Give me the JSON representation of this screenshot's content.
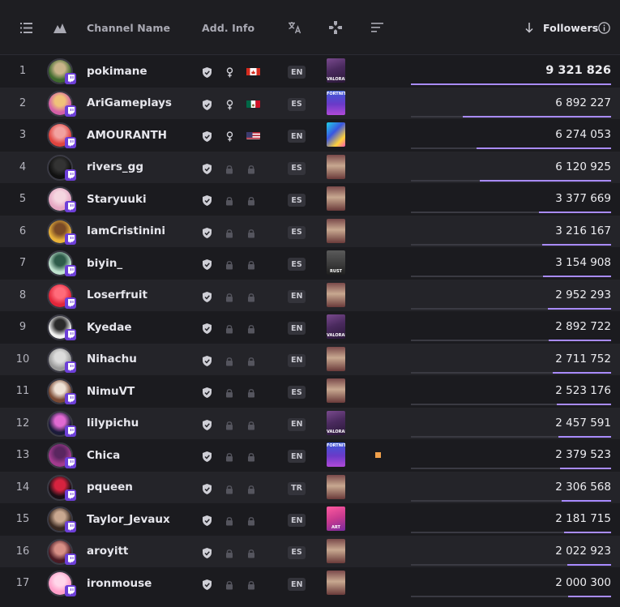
{
  "header": {
    "channel_name": "Channel Name",
    "add_info": "Add. Info",
    "followers": "Followers"
  },
  "icons": {
    "list": "list-icon",
    "platform": "platform-icon",
    "translate": "translate-icon",
    "game": "gamepad-icon",
    "sort_lines": "lines-icon",
    "sort_arrow": "arrow-down-icon",
    "info": "info-icon",
    "verified": "shield-check-icon",
    "gender": "female-icon",
    "locked": "lock-icon",
    "twitch": "twitch-icon"
  },
  "colors": {
    "accent": "#a98bff",
    "twitch": "#6d3fd8",
    "live": "#f0a04b"
  },
  "max_followers": 9321826,
  "rows": [
    {
      "rank": "1",
      "name": "pokimane",
      "gender": true,
      "flag": "CA",
      "lang": "EN",
      "game": "valorant",
      "game_text": "VALORANT",
      "followers": "9 321 826",
      "value": 9321826,
      "avatar": [
        "#3f6a2e",
        "#c9b48a"
      ]
    },
    {
      "rank": "2",
      "name": "AriGameplays",
      "gender": true,
      "flag": "MX",
      "lang": "ES",
      "game": "fortnite",
      "game_text": "FORTNITE",
      "followers": "6 892 227",
      "value": 6892227,
      "avatar": [
        "#d45fa8",
        "#f0c27a"
      ]
    },
    {
      "rank": "3",
      "name": "AMOURANTH",
      "gender": true,
      "flag": "US",
      "lang": "EN",
      "game": "fallguys",
      "game_text": "",
      "followers": "6 274 053",
      "value": 6274053,
      "avatar": [
        "#e0443f",
        "#f2a2a0"
      ]
    },
    {
      "rank": "4",
      "name": "rivers_gg",
      "gender": false,
      "flag": "",
      "lang": "ES",
      "game": "justchatting",
      "game_text": "",
      "followers": "6 120 925",
      "value": 6120925,
      "avatar": [
        "#111111",
        "#333333"
      ]
    },
    {
      "rank": "5",
      "name": "Staryuuki",
      "gender": false,
      "flag": "",
      "lang": "ES",
      "game": "justchatting",
      "game_text": "",
      "followers": "3 377 669",
      "value": 3377669,
      "avatar": [
        "#e5a7c3",
        "#f5d6e0"
      ]
    },
    {
      "rank": "6",
      "name": "IamCristinini",
      "gender": false,
      "flag": "",
      "lang": "ES",
      "game": "justchatting",
      "game_text": "",
      "followers": "3 216 167",
      "value": 3216167,
      "avatar": [
        "#e8b23a",
        "#7a4a26"
      ]
    },
    {
      "rank": "7",
      "name": "biyin_",
      "gender": false,
      "flag": "",
      "lang": "ES",
      "game": "rust",
      "game_text": "RUST",
      "followers": "3 154 908",
      "value": 3154908,
      "avatar": [
        "#bfe3cf",
        "#2e5c4a"
      ]
    },
    {
      "rank": "8",
      "name": "Loserfruit",
      "gender": false,
      "flag": "",
      "lang": "EN",
      "game": "justchatting",
      "game_text": "",
      "followers": "2 952 293",
      "value": 2952293,
      "avatar": [
        "#e2263a",
        "#ff6b7a"
      ]
    },
    {
      "rank": "9",
      "name": "Kyedae",
      "gender": false,
      "flag": "",
      "lang": "EN",
      "game": "valorant",
      "game_text": "VALORANT",
      "followers": "2 892 722",
      "value": 2892722,
      "avatar": [
        "#f2f2f2",
        "#2a2a2a"
      ]
    },
    {
      "rank": "10",
      "name": "Nihachu",
      "gender": false,
      "flag": "",
      "lang": "EN",
      "game": "justchatting",
      "game_text": "",
      "followers": "2 711 752",
      "value": 2711752,
      "avatar": [
        "#9a9a9a",
        "#dcdcdc"
      ]
    },
    {
      "rank": "11",
      "name": "NimuVT",
      "gender": false,
      "flag": "",
      "lang": "ES",
      "game": "justchatting",
      "game_text": "",
      "followers": "2 523 176",
      "value": 2523176,
      "avatar": [
        "#7a4a34",
        "#efe2d6"
      ]
    },
    {
      "rank": "12",
      "name": "lilypichu",
      "gender": false,
      "flag": "",
      "lang": "EN",
      "game": "valorant",
      "game_text": "VALORANT",
      "followers": "2 457 591",
      "value": 2457591,
      "avatar": [
        "#1b1b3a",
        "#e06ad2"
      ]
    },
    {
      "rank": "13",
      "name": "Chica",
      "gender": false,
      "flag": "",
      "lang": "EN",
      "game": "fortnite",
      "game_text": "FORTNITE",
      "followers": "2 379 523",
      "value": 2379523,
      "avatar": [
        "#a23a8e",
        "#5a2660"
      ],
      "live": true
    },
    {
      "rank": "14",
      "name": "pqueen",
      "gender": false,
      "flag": "",
      "lang": "TR",
      "game": "justchatting",
      "game_text": "",
      "followers": "2 306 568",
      "value": 2306568,
      "avatar": [
        "#1a0f16",
        "#d6233f"
      ]
    },
    {
      "rank": "15",
      "name": "Taylor_Jevaux",
      "gender": false,
      "flag": "",
      "lang": "EN",
      "game": "art",
      "game_text": "ART",
      "followers": "2 181 715",
      "value": 2181715,
      "avatar": [
        "#3a2a22",
        "#c9a890"
      ]
    },
    {
      "rank": "16",
      "name": "aroyitt",
      "gender": false,
      "flag": "",
      "lang": "ES",
      "game": "justchatting",
      "game_text": "",
      "followers": "2 022 923",
      "value": 2022923,
      "avatar": [
        "#4a1a24",
        "#d78f86"
      ]
    },
    {
      "rank": "17",
      "name": "ironmouse",
      "gender": false,
      "flag": "",
      "lang": "EN",
      "game": "justchatting",
      "game_text": "",
      "followers": "2 000 300",
      "value": 2000300,
      "avatar": [
        "#ff9ec9",
        "#ffd6ea"
      ]
    }
  ]
}
